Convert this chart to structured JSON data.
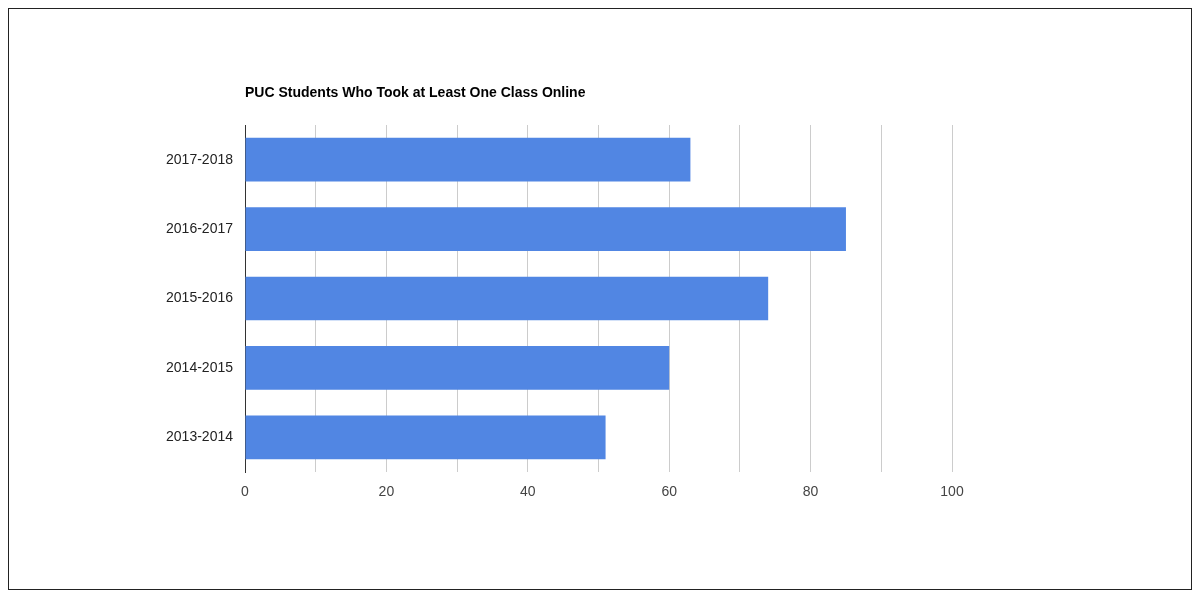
{
  "chart_data": {
    "type": "bar",
    "orientation": "horizontal",
    "title": "PUC Students Who Took at Least One Class Online",
    "categories": [
      "2017-2018",
      "2016-2017",
      "2015-2016",
      "2014-2015",
      "2013-2014"
    ],
    "values": [
      63,
      85,
      74,
      60,
      51
    ],
    "color": "#5186e3",
    "xlim": [
      0,
      100
    ],
    "xticks": [
      0,
      {
        "value": 10,
        "label": null
      },
      20,
      {
        "value": 30,
        "label": null
      },
      40,
      {
        "value": 50,
        "label": null
      },
      60,
      {
        "value": 70,
        "label": null
      },
      80,
      {
        "value": 90,
        "label": null
      },
      100
    ],
    "grid": "x",
    "legend": false
  }
}
